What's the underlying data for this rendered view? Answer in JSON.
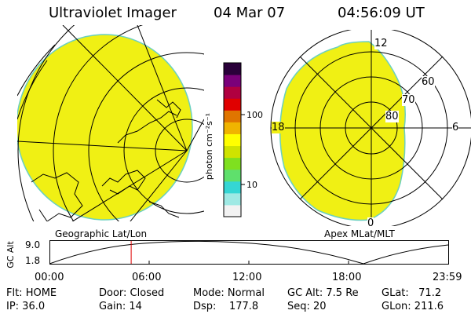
{
  "header": {
    "instrument": "Ultraviolet Imager",
    "date": "04 Mar 07",
    "time": "04:56:09 UT"
  },
  "colorbar": {
    "unit_label": "photon cm⁻²s⁻¹",
    "tick_labels": [
      "100",
      "10"
    ],
    "colors": [
      "#f2f2f2",
      "#9fe9e4",
      "#35d6d4",
      "#5fe06c",
      "#7fe01f",
      "#cfe300",
      "#ffff00",
      "#f0b400",
      "#e07500",
      "#e00000",
      "#b00040",
      "#7a007a",
      "#2a003a"
    ]
  },
  "left_panel": {
    "caption": "Geographic Lat/Lon",
    "fill_color": "#f0f014"
  },
  "right_panel": {
    "caption": "Apex MLat/MLT",
    "mlt_labels": [
      "12",
      "18",
      "6",
      "0"
    ],
    "mlat_labels": [
      "60",
      "70",
      "80"
    ],
    "fill_color": "#f0f014"
  },
  "altitude_plot": {
    "ylabel": "GC Alt",
    "yticks": [
      "9.0",
      "1.8"
    ],
    "xticks": [
      "00:00",
      "06:00",
      "12:00",
      "18:00",
      "23:59"
    ],
    "current_time_fraction": 0.205
  },
  "info": {
    "flt": "Flt: HOME",
    "ip": "IP: 36.0",
    "door": "Door: Closed",
    "gain": "Gain: 14",
    "mode": "Mode: Normal",
    "dsp": "Dsp:    177.8",
    "gc_alt": "GC Alt: 7.5 Re",
    "seq": "Seq: 20",
    "glat": "GLat:   71.2",
    "glon": "GLon: 211.6"
  }
}
